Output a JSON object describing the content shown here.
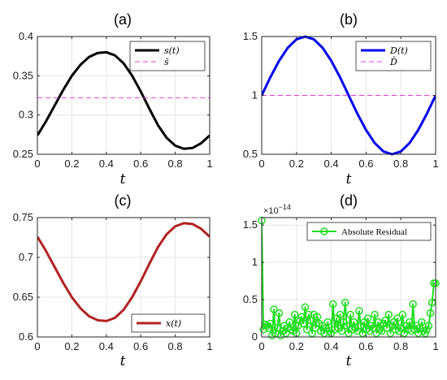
{
  "chart_data": [
    {
      "panel": "(a)",
      "type": "line",
      "xlabel": "t",
      "xlim": [
        0,
        1
      ],
      "ylim": [
        0.25,
        0.4
      ],
      "xticks": [
        0,
        0.2,
        0.4,
        0.6,
        0.8,
        1
      ],
      "xtick_labels": [
        "0",
        "0.2",
        "0.4",
        "0.6",
        "0.8",
        "1"
      ],
      "yticks": [
        0.25,
        0.3,
        0.35,
        0.4
      ],
      "ytick_labels": [
        "0.25",
        "0.3",
        "0.35",
        "0.4"
      ],
      "grid": true,
      "legend_position": "top-right",
      "series": [
        {
          "name": "s(t)",
          "style": "solid",
          "color": "#000000",
          "linewidth": 3,
          "x": [
            0,
            0.05,
            0.1,
            0.15,
            0.2,
            0.25,
            0.3,
            0.35,
            0.4,
            0.45,
            0.5,
            0.55,
            0.6,
            0.65,
            0.7,
            0.75,
            0.8,
            0.85,
            0.9,
            0.95,
            1
          ],
          "y": [
            0.274,
            0.292,
            0.312,
            0.332,
            0.35,
            0.364,
            0.374,
            0.379,
            0.38,
            0.376,
            0.366,
            0.35,
            0.33,
            0.308,
            0.287,
            0.271,
            0.261,
            0.257,
            0.258,
            0.264,
            0.274
          ]
        },
        {
          "name": "s̄",
          "style": "dashed",
          "color": "#e040e0",
          "linewidth": 1,
          "x": [
            0,
            1
          ],
          "y": [
            0.322,
            0.322
          ]
        }
      ]
    },
    {
      "panel": "(b)",
      "type": "line",
      "xlabel": "t",
      "xlim": [
        0,
        1
      ],
      "ylim": [
        0.5,
        1.5
      ],
      "xticks": [
        0,
        0.2,
        0.4,
        0.6,
        0.8,
        1
      ],
      "xtick_labels": [
        "0",
        "0.2",
        "0.4",
        "0.6",
        "0.8",
        "1"
      ],
      "yticks": [
        0.5,
        1,
        1.5
      ],
      "ytick_labels": [
        "0.5",
        "1",
        "1.5"
      ],
      "grid": true,
      "legend_position": "top-right",
      "series": [
        {
          "name": "D(t)",
          "style": "solid",
          "color": "#0000ee",
          "linewidth": 3,
          "x": [
            0,
            0.05,
            0.1,
            0.15,
            0.2,
            0.25,
            0.3,
            0.35,
            0.4,
            0.45,
            0.5,
            0.55,
            0.6,
            0.65,
            0.7,
            0.75,
            0.8,
            0.85,
            0.9,
            0.95,
            1
          ],
          "y": [
            1,
            1.155,
            1.294,
            1.405,
            1.476,
            1.5,
            1.476,
            1.405,
            1.294,
            1.155,
            1,
            0.845,
            0.706,
            0.595,
            0.524,
            0.5,
            0.524,
            0.595,
            0.706,
            0.845,
            1
          ]
        },
        {
          "name": "D̄",
          "style": "dashed",
          "color": "#e040e0",
          "linewidth": 1,
          "x": [
            0,
            1
          ],
          "y": [
            1,
            1
          ]
        }
      ]
    },
    {
      "panel": "(c)",
      "type": "line",
      "xlabel": "t",
      "xlim": [
        0,
        1
      ],
      "ylim": [
        0.6,
        0.75
      ],
      "xticks": [
        0,
        0.2,
        0.4,
        0.6,
        0.8,
        1
      ],
      "xtick_labels": [
        "0",
        "0.2",
        "0.4",
        "0.6",
        "0.8",
        "1"
      ],
      "yticks": [
        0.6,
        0.65,
        0.7,
        0.75
      ],
      "ytick_labels": [
        "0.6",
        "0.65",
        "0.7",
        "0.75"
      ],
      "grid": true,
      "legend_position": "bottom-right",
      "series": [
        {
          "name": "x(t)",
          "style": "solid",
          "color": "#b22222",
          "linewidth": 3,
          "x": [
            0,
            0.05,
            0.1,
            0.15,
            0.2,
            0.25,
            0.3,
            0.35,
            0.4,
            0.45,
            0.5,
            0.55,
            0.6,
            0.65,
            0.7,
            0.75,
            0.8,
            0.85,
            0.9,
            0.95,
            1
          ],
          "y": [
            0.726,
            0.708,
            0.688,
            0.668,
            0.65,
            0.636,
            0.626,
            0.621,
            0.62,
            0.624,
            0.634,
            0.65,
            0.67,
            0.692,
            0.713,
            0.729,
            0.739,
            0.743,
            0.742,
            0.736,
            0.726
          ]
        }
      ]
    },
    {
      "panel": "(d)",
      "type": "line",
      "xlabel": "t",
      "xlim": [
        0,
        1
      ],
      "ylim": [
        0,
        1.6
      ],
      "exponent_label": "×10",
      "exponent_power": "−14",
      "xticks": [
        0,
        0.2,
        0.4,
        0.6,
        0.8,
        1
      ],
      "xtick_labels": [
        "0",
        "0.2",
        "0.4",
        "0.6",
        "0.8",
        "1"
      ],
      "yticks": [
        0,
        0.5,
        1,
        1.5
      ],
      "ytick_labels": [
        "0",
        "0.5",
        "1",
        "1.5"
      ],
      "grid": true,
      "legend_position": "top-right",
      "series": [
        {
          "name": "Absolute Residual",
          "style": "solid-markers",
          "color": "#22dd22",
          "linewidth": 2,
          "x": [
            0,
            0.01,
            0.02,
            0.03,
            0.04,
            0.05,
            0.06,
            0.07,
            0.08,
            0.09,
            0.1,
            0.11,
            0.12,
            0.13,
            0.14,
            0.15,
            0.16,
            0.17,
            0.18,
            0.19,
            0.2,
            0.21,
            0.22,
            0.23,
            0.24,
            0.25,
            0.26,
            0.27,
            0.28,
            0.29,
            0.3,
            0.31,
            0.32,
            0.33,
            0.34,
            0.35,
            0.36,
            0.37,
            0.38,
            0.39,
            0.4,
            0.41,
            0.42,
            0.43,
            0.44,
            0.45,
            0.46,
            0.47,
            0.48,
            0.49,
            0.5,
            0.51,
            0.52,
            0.53,
            0.54,
            0.55,
            0.56,
            0.57,
            0.58,
            0.59,
            0.6,
            0.61,
            0.62,
            0.63,
            0.64,
            0.65,
            0.66,
            0.67,
            0.68,
            0.69,
            0.7,
            0.71,
            0.72,
            0.73,
            0.74,
            0.75,
            0.76,
            0.77,
            0.78,
            0.79,
            0.8,
            0.81,
            0.82,
            0.83,
            0.84,
            0.85,
            0.86,
            0.87,
            0.88,
            0.89,
            0.9,
            0.91,
            0.92,
            0.93,
            0.94,
            0.95,
            0.96,
            0.97,
            0.98,
            0.99,
            1
          ],
          "y": [
            1.56,
            0.1,
            0.17,
            0.15,
            0.12,
            0.18,
            0.02,
            0.37,
            0.05,
            0.12,
            0.32,
            0.02,
            0.08,
            0.15,
            0.05,
            0.12,
            0.2,
            0.1,
            0.08,
            0.3,
            0.05,
            0.15,
            0.22,
            0.27,
            0.18,
            0.4,
            0.1,
            0.3,
            0.22,
            0.05,
            0.3,
            0.12,
            0.27,
            0.18,
            0.08,
            0.15,
            0.05,
            0.12,
            0.2,
            0.08,
            0.05,
            0.44,
            0.1,
            0.25,
            0.12,
            0.3,
            0.08,
            0.2,
            0.46,
            0.15,
            0.05,
            0.3,
            0.1,
            0.2,
            0.12,
            0.08,
            0.35,
            0.15,
            0.05,
            0.2,
            0.1,
            0.25,
            0.08,
            0.15,
            0.12,
            0.3,
            0.05,
            0.2,
            0.1,
            0.08,
            0.18,
            0.22,
            0.12,
            0.3,
            0.05,
            0.15,
            0.2,
            0.1,
            0.25,
            0.08,
            0.12,
            0.3,
            0.05,
            0.15,
            0.1,
            0.2,
            0.08,
            0.44,
            0.1,
            0.15,
            0.05,
            0.12,
            0.2,
            0.08,
            0.05,
            0.1,
            0.15,
            0.32,
            0.46,
            0.72,
            0.72
          ]
        }
      ]
    }
  ]
}
